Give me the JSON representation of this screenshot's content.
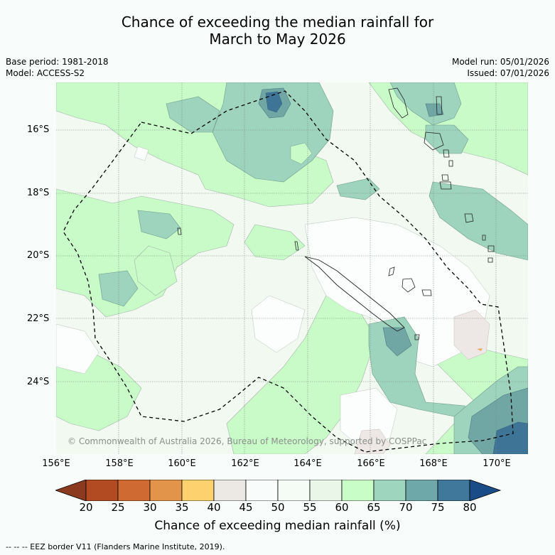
{
  "title": {
    "line1": "Chance of exceeding the median rainfall for",
    "line2": "March to May 2026"
  },
  "meta": {
    "base_period": "Base period: 1981-2018",
    "model": "Model: ACCESS-S2",
    "model_run": "Model run: 05/01/2026",
    "issued": "Issued: 07/01/2026"
  },
  "map": {
    "lat_labels": [
      "16°S",
      "18°S",
      "20°S",
      "22°S",
      "24°S"
    ],
    "lon_labels": [
      "156°E",
      "158°E",
      "160°E",
      "162°E",
      "164°E",
      "166°E",
      "168°E",
      "170°E"
    ],
    "copyright": "© Commonwealth of Australia 2026, Bureau of Meteorology, supported by COSPPac"
  },
  "colorbar": {
    "ticks": [
      "20",
      "25",
      "30",
      "35",
      "40",
      "45",
      "50",
      "55",
      "60",
      "65",
      "70",
      "75",
      "80"
    ],
    "colors": [
      "#8b3a1f",
      "#b24a22",
      "#cf6a32",
      "#e2944a",
      "#fdd16e",
      "#ece8e4",
      "#f8fdfb",
      "#f5fbf5",
      "#e9f6e8",
      "#c8fdc8",
      "#9ed5bf",
      "#6ea8a8",
      "#3f789b",
      "#1a4c87"
    ],
    "title": "Chance of exceeding median rainfall (%)"
  },
  "legend_note": "--  --  -- EEZ border V11 (Flanders Marine Institute, 2019)."
}
